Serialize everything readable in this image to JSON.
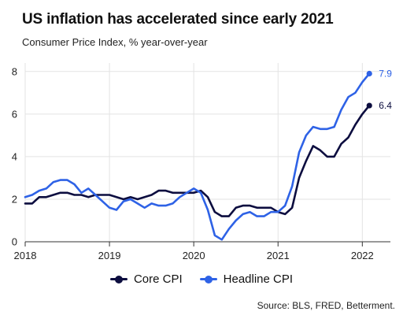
{
  "title": "US inflation has accelerated since early 2021",
  "subtitle": "Consumer Price Index, % year-over-year",
  "source": "Source: BLS, FRED, Betterment.",
  "colors": {
    "core": "#0c0d3f",
    "headline": "#2e62e6",
    "grid": "#e3e3e3",
    "axis": "#333333"
  },
  "chart_data": {
    "type": "line",
    "title": "US inflation has accelerated since early 2021",
    "subtitle": "Consumer Price Index, % year-over-year",
    "x_start": "2018-01",
    "x_ticks": [
      "2018",
      "2019",
      "2020",
      "2021",
      "2022"
    ],
    "y_ticks": [
      "0",
      "2",
      "4",
      "6",
      "8"
    ],
    "xlim": [
      "2018-01",
      "2022-05"
    ],
    "ylim": [
      0,
      8.4
    ],
    "grid": true,
    "legend_position": "bottom",
    "series": [
      {
        "name": "Core CPI",
        "key": "core",
        "end_label": "6.4",
        "values": [
          1.8,
          1.8,
          2.1,
          2.1,
          2.2,
          2.3,
          2.3,
          2.2,
          2.2,
          2.1,
          2.2,
          2.2,
          2.2,
          2.1,
          2.0,
          2.1,
          2.0,
          2.1,
          2.2,
          2.4,
          2.4,
          2.3,
          2.3,
          2.3,
          2.3,
          2.4,
          2.1,
          1.4,
          1.2,
          1.2,
          1.6,
          1.7,
          1.7,
          1.6,
          1.6,
          1.6,
          1.4,
          1.3,
          1.6,
          3.0,
          3.8,
          4.5,
          4.3,
          4.0,
          4.0,
          4.6,
          4.9,
          5.5,
          6.0,
          6.4
        ]
      },
      {
        "name": "Headline CPI",
        "key": "headline",
        "end_label": "7.9",
        "values": [
          2.1,
          2.2,
          2.4,
          2.5,
          2.8,
          2.9,
          2.9,
          2.7,
          2.3,
          2.5,
          2.2,
          1.9,
          1.6,
          1.5,
          1.9,
          2.0,
          1.8,
          1.6,
          1.8,
          1.7,
          1.7,
          1.8,
          2.1,
          2.3,
          2.5,
          2.3,
          1.5,
          0.3,
          0.1,
          0.6,
          1.0,
          1.3,
          1.4,
          1.2,
          1.2,
          1.4,
          1.4,
          1.7,
          2.6,
          4.2,
          5.0,
          5.4,
          5.3,
          5.3,
          5.4,
          6.2,
          6.8,
          7.0,
          7.5,
          7.9
        ]
      }
    ]
  }
}
